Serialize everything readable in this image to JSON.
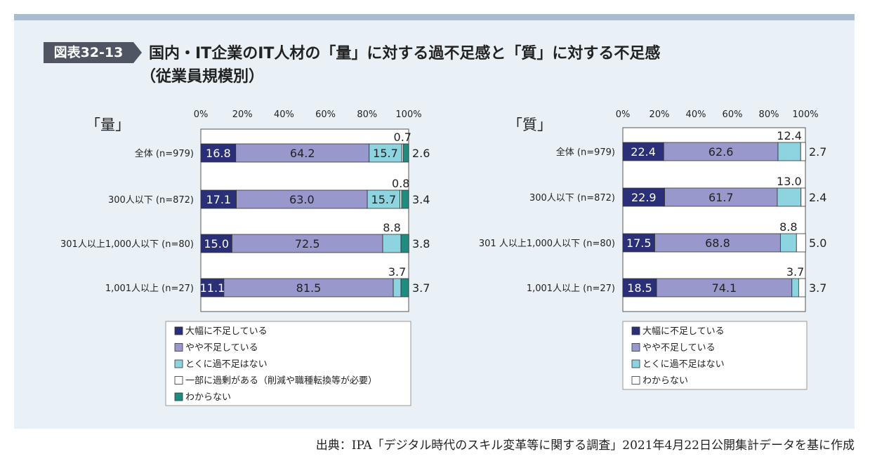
{
  "header": {
    "fig_label": "図表32-13",
    "title_line1": "国内・IT企業のIT人材の「量」に対する過不足感と「質」に対する不足感",
    "title_line2": "（従業員規模別）"
  },
  "source": "出典：IPA「デジタル時代のスキル変革等に関する調査」2021年4月22日公開集計データを基に作成",
  "colors": {
    "dark": "#2a2f78",
    "purple": "#9898cc",
    "cyan": "#8dd3e0",
    "white": "#ffffff",
    "teal": "#1f8c7f"
  },
  "chart_data": [
    {
      "type": "bar",
      "orientation": "horizontal-stacked-100",
      "title": "「量」",
      "xlim": [
        0,
        100
      ],
      "tick_labels": [
        "0%",
        "20%",
        "40%",
        "60%",
        "80%",
        "100%"
      ],
      "categories": [
        "全体 (n=979)",
        "300人以下 (n=872)",
        "301人以上1,000人以下 (n=80)",
        "1,001人以上 (n=27)"
      ],
      "series": [
        {
          "name": "大幅に不足している",
          "color": "dark",
          "values": [
            16.8,
            17.1,
            15.0,
            11.1
          ]
        },
        {
          "name": "やや不足している",
          "color": "purple",
          "values": [
            64.2,
            63.0,
            72.5,
            81.5
          ]
        },
        {
          "name": "とくに過不足はない",
          "color": "cyan",
          "values": [
            15.7,
            15.7,
            8.8,
            3.7
          ]
        },
        {
          "name": "一部に過剰がある（削減や職種転換等が必要）",
          "color": "white",
          "values": [
            0.7,
            0.8,
            0.0,
            0.0
          ]
        },
        {
          "name": "わからない",
          "color": "teal",
          "values": [
            2.6,
            3.4,
            3.8,
            3.7
          ]
        }
      ],
      "labels": [
        [
          {
            "s": 0,
            "text": "16.8"
          },
          {
            "s": 1,
            "text": "64.2"
          },
          {
            "s": 2,
            "text": "15.7"
          },
          {
            "s": 3,
            "text": "0.7",
            "pos": "above"
          },
          {
            "s": 4,
            "text": "2.6",
            "pos": "right"
          }
        ],
        [
          {
            "s": 0,
            "text": "17.1"
          },
          {
            "s": 1,
            "text": "63.0"
          },
          {
            "s": 2,
            "text": "15.7"
          },
          {
            "s": 3,
            "text": "0.8",
            "pos": "above"
          },
          {
            "s": 4,
            "text": "3.4",
            "pos": "right"
          }
        ],
        [
          {
            "s": 0,
            "text": "15.0"
          },
          {
            "s": 1,
            "text": "72.5"
          },
          {
            "s": 2,
            "text": "8.8",
            "pos": "above"
          },
          {
            "s": 4,
            "text": "3.8",
            "pos": "right"
          }
        ],
        [
          {
            "s": 0,
            "text": "11.1"
          },
          {
            "s": 1,
            "text": "81.5"
          },
          {
            "s": 2,
            "text": "3.7",
            "pos": "above"
          },
          {
            "s": 4,
            "text": "3.7",
            "pos": "right"
          }
        ]
      ]
    },
    {
      "type": "bar",
      "orientation": "horizontal-stacked-100",
      "title": "「質」",
      "xlim": [
        0,
        100
      ],
      "tick_labels": [
        "0%",
        "20%",
        "40%",
        "60%",
        "80%",
        "100%"
      ],
      "categories": [
        "全体 (n=979)",
        "300人以下 (n=872)",
        "301 人以上1,000人以下 (n=80)",
        "1,001人以上 (n=27)"
      ],
      "series": [
        {
          "name": "大幅に不足している",
          "color": "dark",
          "values": [
            22.4,
            22.9,
            17.5,
            18.5
          ]
        },
        {
          "name": "やや不足している",
          "color": "purple",
          "values": [
            62.6,
            61.7,
            68.8,
            74.1
          ]
        },
        {
          "name": "とくに過不足はない",
          "color": "cyan",
          "values": [
            12.4,
            13.0,
            8.8,
            3.7
          ]
        },
        {
          "name": "わからない",
          "color": "white",
          "values": [
            2.7,
            2.4,
            5.0,
            3.7
          ]
        }
      ],
      "labels": [
        [
          {
            "s": 0,
            "text": "22.4"
          },
          {
            "s": 1,
            "text": "62.6"
          },
          {
            "s": 2,
            "text": "12.4",
            "pos": "above"
          },
          {
            "s": 3,
            "text": "2.7",
            "pos": "right"
          }
        ],
        [
          {
            "s": 0,
            "text": "22.9"
          },
          {
            "s": 1,
            "text": "61.7"
          },
          {
            "s": 2,
            "text": "13.0",
            "pos": "above"
          },
          {
            "s": 3,
            "text": "2.4",
            "pos": "right"
          }
        ],
        [
          {
            "s": 0,
            "text": "17.5"
          },
          {
            "s": 1,
            "text": "68.8"
          },
          {
            "s": 2,
            "text": "8.8",
            "pos": "above"
          },
          {
            "s": 3,
            "text": "5.0",
            "pos": "right"
          }
        ],
        [
          {
            "s": 0,
            "text": "18.5"
          },
          {
            "s": 1,
            "text": "74.1"
          },
          {
            "s": 2,
            "text": "3.7",
            "pos": "above"
          },
          {
            "s": 3,
            "text": "3.7",
            "pos": "right"
          }
        ]
      ]
    }
  ]
}
